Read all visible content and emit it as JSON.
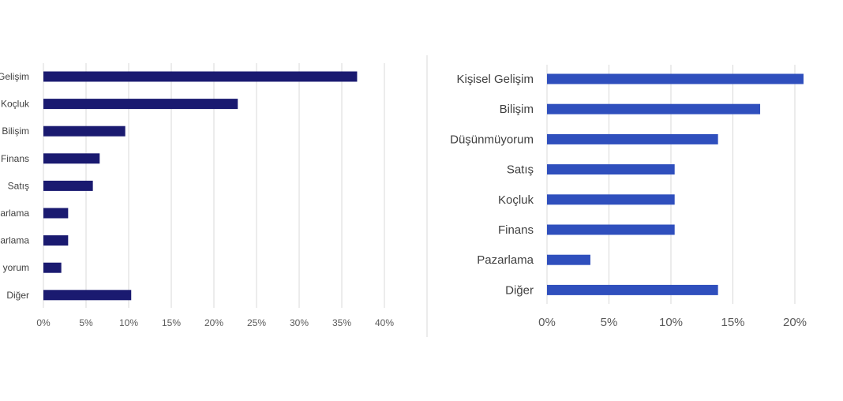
{
  "chart_data": [
    {
      "type": "bar",
      "orientation": "horizontal",
      "categories": [
        "Gelişim",
        "Koçluk",
        "Bilişim",
        "Finans",
        "Satış",
        "zarlama",
        "zarlama",
        "yorum",
        "Diğer"
      ],
      "values": [
        36.8,
        22.8,
        9.6,
        6.6,
        5.8,
        2.9,
        2.9,
        2.1,
        10.3
      ],
      "xlim": [
        0,
        40
      ],
      "xticks": [
        "0%",
        "5%",
        "10%",
        "15%",
        "20%",
        "25%",
        "30%",
        "35%",
        "40%"
      ],
      "color": "#1a1a70",
      "grid": true,
      "title": "",
      "xlabel": "",
      "ylabel": ""
    },
    {
      "type": "bar",
      "orientation": "horizontal",
      "categories": [
        "Kişisel Gelişim",
        "Bilişim",
        "Düşünmüyorum",
        "Satış",
        "Koçluk",
        "Finans",
        "Pazarlama",
        "Diğer"
      ],
      "values": [
        20.7,
        17.2,
        13.8,
        10.3,
        10.3,
        10.3,
        3.5,
        13.8
      ],
      "xlim": [
        0,
        20
      ],
      "xticks": [
        "0%",
        "5%",
        "10%",
        "15%",
        "20%"
      ],
      "color": "#2f4fbd",
      "grid": true,
      "title": "",
      "xlabel": "",
      "ylabel": ""
    }
  ]
}
